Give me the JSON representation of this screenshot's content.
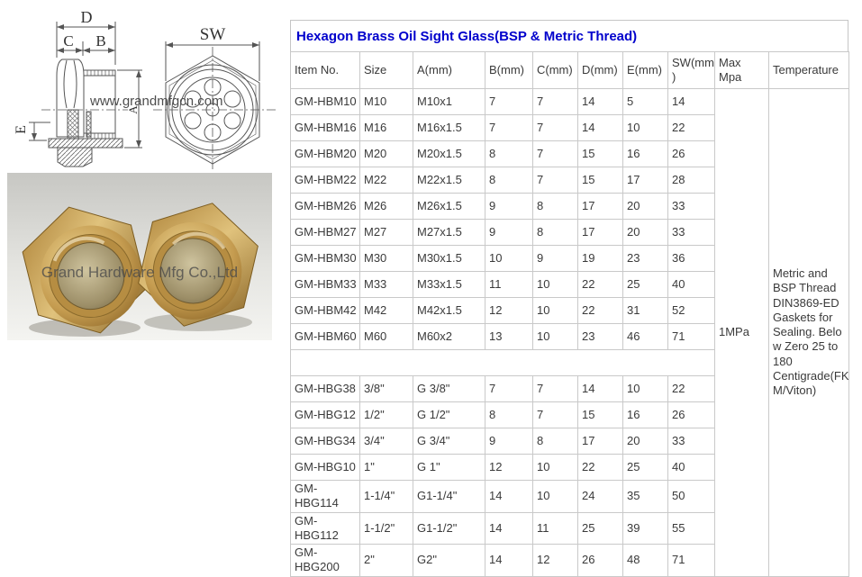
{
  "title": "Hexagon Brass Oil Sight Glass(BSP & Metric Thread)",
  "drawing": {
    "watermark": "www.grandmfgcn.com",
    "dim_labels": {
      "D": "D",
      "C": "C",
      "B": "B",
      "E": "E",
      "A": "A",
      "SW": "SW"
    }
  },
  "photo": {
    "watermark": "Grand Hardware Mfg Co.,Ltd"
  },
  "table": {
    "headers": [
      "Item No.",
      "Size",
      "A(mm)",
      "B(mm)",
      "C(mm)",
      "D(mm)",
      "E(mm)",
      "SW(mm\n)",
      "Max Mpa",
      "Temperature"
    ],
    "metric_rows": [
      [
        "GM-HBM10",
        "M10",
        "M10x1",
        "7",
        "7",
        "14",
        "5",
        "14"
      ],
      [
        "GM-HBM16",
        "M16",
        "M16x1.5",
        "7",
        "7",
        "14",
        "10",
        "22"
      ],
      [
        "GM-HBM20",
        "M20",
        "M20x1.5",
        "8",
        "7",
        "15",
        "16",
        "26"
      ],
      [
        "GM-HBM22",
        "M22",
        "M22x1.5",
        "8",
        "7",
        "15",
        "17",
        "28"
      ],
      [
        "GM-HBM26",
        "M26",
        "M26x1.5",
        "9",
        "8",
        "17",
        "20",
        "33"
      ],
      [
        "GM-HBM27",
        "M27",
        "M27x1.5",
        "9",
        "8",
        "17",
        "20",
        "33"
      ],
      [
        "GM-HBM30",
        "M30",
        "M30x1.5",
        "10",
        "9",
        "19",
        "23",
        "36"
      ],
      [
        "GM-HBM33",
        "M33",
        "M33x1.5",
        "11",
        "10",
        "22",
        "25",
        "40"
      ],
      [
        "GM-HBM42",
        "M42",
        "M42x1.5",
        "12",
        "10",
        "22",
        "31",
        "52"
      ],
      [
        "GM-HBM60",
        "M60",
        "M60x2",
        "13",
        "10",
        "23",
        "46",
        "71"
      ]
    ],
    "bsp_rows": [
      [
        "GM-HBG38",
        "3/8\"",
        "G 3/8\"",
        "7",
        "7",
        "14",
        "10",
        "22"
      ],
      [
        "GM-HBG12",
        "1/2\"",
        "G 1/2\"",
        "8",
        "7",
        "15",
        "16",
        "26"
      ],
      [
        "GM-HBG34",
        "3/4\"",
        "G 3/4\"",
        "9",
        "8",
        "17",
        "20",
        "33"
      ],
      [
        "GM-HBG10",
        "1\"",
        "G 1\"",
        "12",
        "10",
        "22",
        "25",
        "40"
      ],
      [
        "GM-HBG114",
        "1-1/4\"",
        "G1-1/4\"",
        "14",
        "10",
        "24",
        "35",
        "50"
      ],
      [
        "GM-HBG112",
        "1-1/2\"",
        "G1-1/2\"",
        "14",
        "11",
        "25",
        "39",
        "55"
      ],
      [
        "GM-\nHBG200",
        "2\"",
        "G2\"",
        "14",
        "12",
        "26",
        "48",
        "71"
      ]
    ],
    "max_mpa": "1MPa",
    "temperature": "Metric and\nBSP Thread\nDIN3869-ED\nGaskets for\nSealing.  Belo\nw Zero 25 to\n180\nCentigrade(FK\nM/Viton)"
  },
  "colors": {
    "title_blue": "#0000cc",
    "table_border": "#c9c9c9",
    "text": "#3a3a3a",
    "brass": "#c49a4e"
  }
}
